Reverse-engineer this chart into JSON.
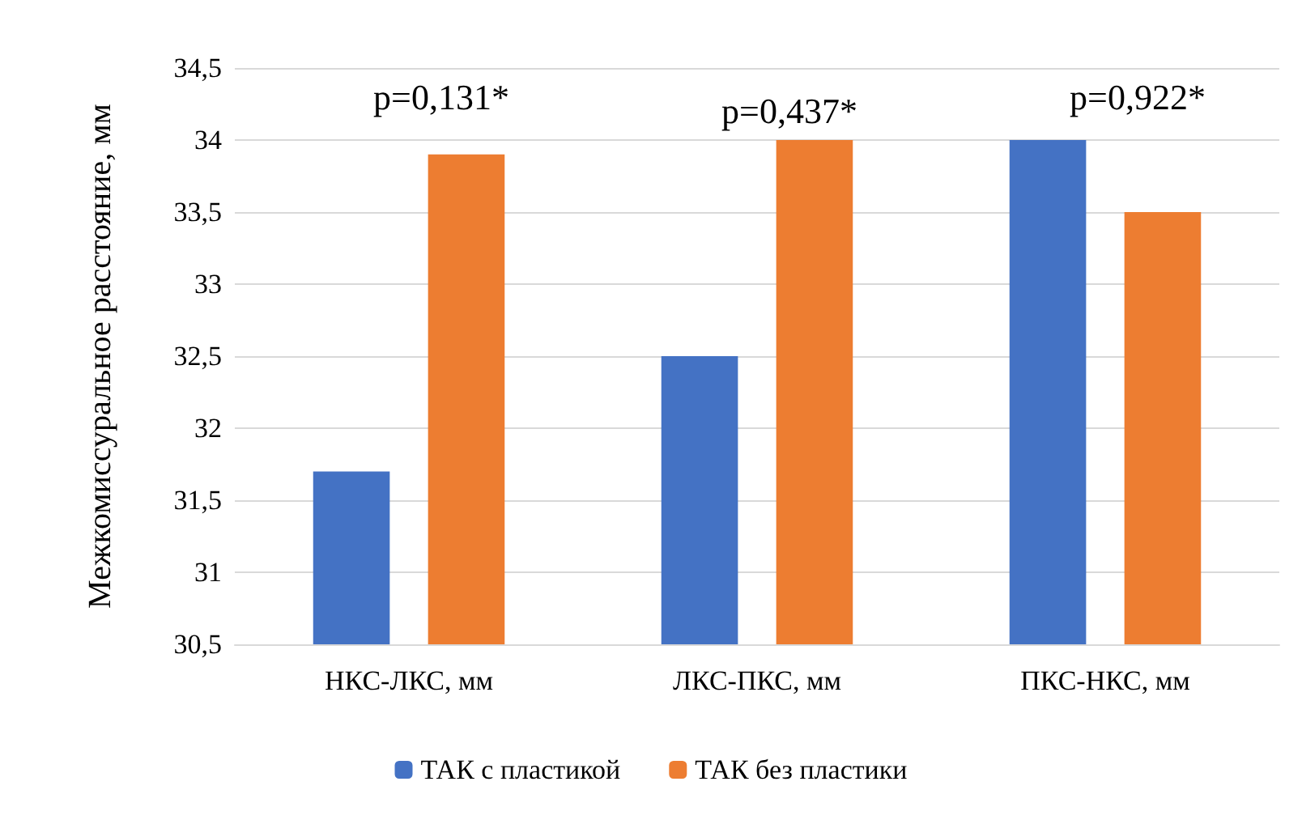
{
  "chart_data": {
    "type": "bar",
    "ylabel": "Межкомиссуральное расстояние, мм",
    "categories": [
      "НКС-ЛКС, мм",
      "ЛКС-ПКС, мм",
      "ПКС-НКС, мм"
    ],
    "series": [
      {
        "name": "ТАК с пластикой",
        "color": "#4472c4",
        "values": [
          31.7,
          32.5,
          34.0
        ]
      },
      {
        "name": "ТАК без пластики",
        "color": "#ed7d31",
        "values": [
          33.9,
          34.0,
          33.5
        ]
      }
    ],
    "ylim": [
      30.5,
      34.5
    ],
    "yticks": [
      {
        "value": 30.5,
        "label": "30,5"
      },
      {
        "value": 31,
        "label": "31"
      },
      {
        "value": 31.5,
        "label": "31,5"
      },
      {
        "value": 32,
        "label": "32"
      },
      {
        "value": 32.5,
        "label": "32,5"
      },
      {
        "value": 33,
        "label": "33"
      },
      {
        "value": 33.5,
        "label": "33,5"
      },
      {
        "value": 34,
        "label": "34"
      },
      {
        "value": 34.5,
        "label": "34,5"
      }
    ],
    "annotations": [
      "p=0,131*",
      "p=0,437*",
      "p=0,922*"
    ],
    "grid": "y",
    "legend": "bottom"
  }
}
